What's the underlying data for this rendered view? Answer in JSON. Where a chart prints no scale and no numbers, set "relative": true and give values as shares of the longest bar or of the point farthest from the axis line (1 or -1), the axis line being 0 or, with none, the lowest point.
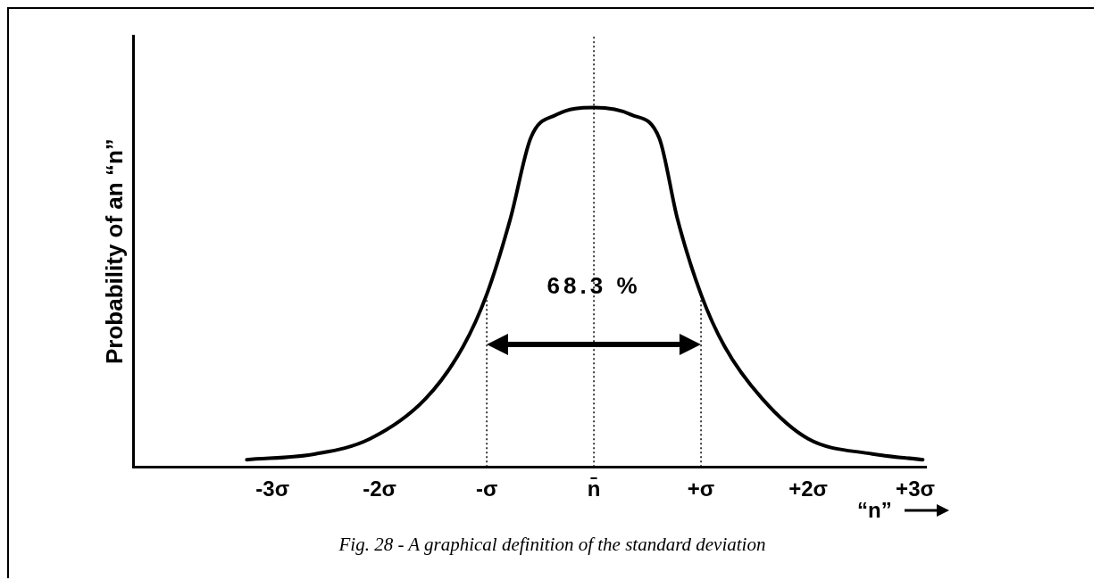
{
  "chart_data": {
    "type": "line",
    "relative": true,
    "xlabel": "“n”",
    "ylabel": "Probability of an “n”",
    "x": [
      -3.24,
      -2.6,
      -2.09,
      -1.57,
      -1.22,
      -1.0,
      -0.78,
      -0.59,
      -0.35,
      0,
      0.35,
      0.61,
      0.78,
      1.0,
      1.22,
      1.57,
      2.0,
      2.6,
      3.07
    ],
    "series": [
      {
        "color": "#000000",
        "values": [
          0.02,
          0.036,
          0.078,
          0.19,
          0.335,
          0.48,
          0.69,
          0.915,
          0.98,
          1,
          0.98,
          0.915,
          0.69,
          0.48,
          0.335,
          0.19,
          0.078,
          0.036,
          0.02
        ]
      }
    ],
    "xlim": [
      -4.3,
      3.1
    ],
    "xticks": [
      {
        "value": -3,
        "label": "-3σ"
      },
      {
        "value": -2,
        "label": "-2σ"
      },
      {
        "value": -1,
        "label": "-σ"
      },
      {
        "value": 0,
        "label": "n̄"
      },
      {
        "value": 1,
        "label": "+σ"
      },
      {
        "value": 2,
        "label": "+2σ"
      },
      {
        "value": 3,
        "label": "+3σ"
      }
    ],
    "ref_lines": [
      {
        "axis": "x",
        "value": -1,
        "line_style": "dotted"
      },
      {
        "axis": "x",
        "value": 0,
        "line_style": "dotted"
      },
      {
        "axis": "x",
        "value": 1,
        "line_style": "dotted"
      }
    ],
    "annotations": [
      {
        "text": "68.3 %",
        "x": 0,
        "y": 0.5
      },
      "Fig. 28 - A graphical definition of the standard deviation"
    ],
    "legend": false,
    "grid": false,
    "marker": "none",
    "line_style": "solid"
  }
}
